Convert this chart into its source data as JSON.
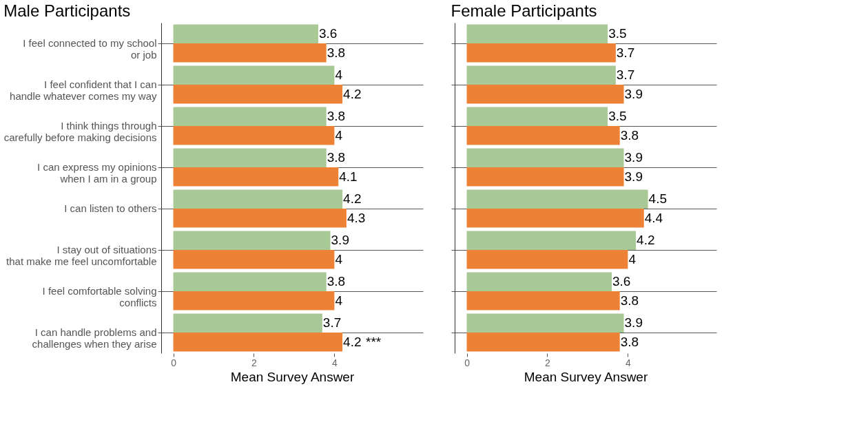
{
  "chart_data": [
    {
      "type": "bar",
      "orientation": "horizontal",
      "title": "Male Participants",
      "xlabel": "Mean Survey Answer",
      "categories": [
        "I feel connected to my school\nor job",
        "I feel confident that I can\nhandle whatever comes my way",
        "I think things through\ncarefully before making decisions",
        "I can express my opinions\nwhen I am in a group",
        "I can listen to others",
        "I stay out of situations\nthat make me feel uncomfortable",
        "I feel comfortable solving\nconflicts",
        "I can handle problems and\nchallenges when they arise"
      ],
      "series": [
        {
          "color": "#a8c896",
          "values": [
            3.6,
            4,
            3.8,
            3.8,
            4.2,
            3.9,
            3.8,
            3.7
          ]
        },
        {
          "color": "#ed8236",
          "values": [
            3.8,
            4.2,
            4,
            4.1,
            4.3,
            4,
            4,
            4.2
          ]
        }
      ],
      "xlim": [
        -0.3,
        6.2
      ],
      "xticks": [
        0,
        2,
        4
      ],
      "grid": "y",
      "data_labels": true,
      "annotations": [
        {
          "text": "***",
          "x": 4.2,
          "y": "I can handle problems and\nchallenges when they arise"
        }
      ]
    },
    {
      "type": "bar",
      "orientation": "horizontal",
      "title": "Female Participants",
      "xlabel": "Mean Survey Answer",
      "categories": [
        null,
        null,
        null,
        null,
        null,
        null,
        null,
        null
      ],
      "series": [
        {
          "color": "#a8c896",
          "values": [
            3.5,
            3.7,
            3.5,
            3.9,
            4.5,
            4.2,
            3.6,
            3.9
          ]
        },
        {
          "color": "#ed8236",
          "values": [
            3.7,
            3.9,
            3.8,
            3.9,
            4.4,
            4,
            3.8,
            3.8
          ]
        }
      ],
      "xlim": [
        -0.3,
        6.2
      ],
      "xticks": [
        0,
        2,
        4
      ],
      "grid": "y",
      "data_labels": true,
      "tick_labels": "x"
    }
  ]
}
